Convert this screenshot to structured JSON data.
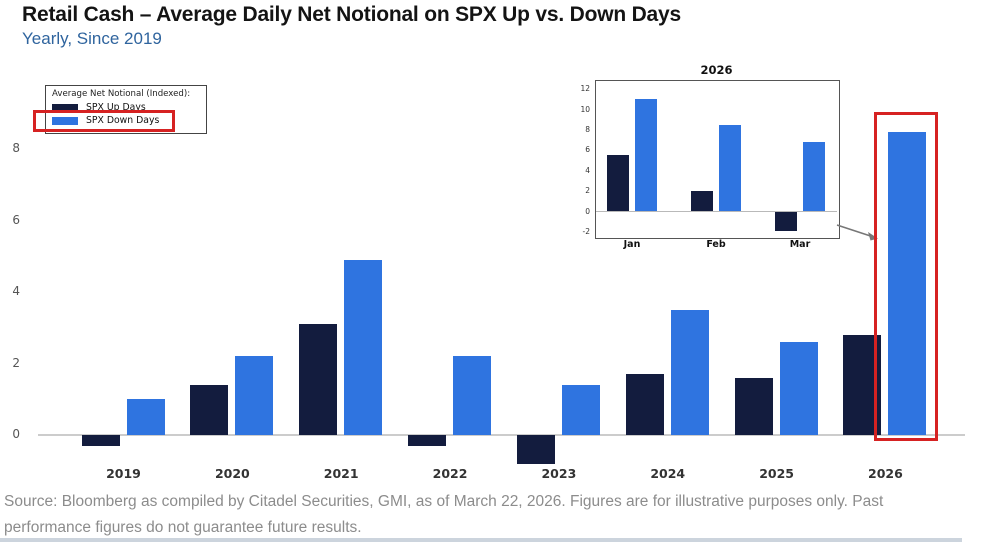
{
  "page": {
    "title": "Retail Cash – Average Daily Net Notional on SPX Up vs. Down Days",
    "subtitle": "Yearly, Since 2019"
  },
  "legend": {
    "title": "Average Net Notional (Indexed):",
    "items": [
      {
        "label": "SPX Up Days",
        "color": "#131c3e"
      },
      {
        "label": "SPX Down Days",
        "color": "#2f74e0"
      }
    ]
  },
  "colors": {
    "up": "#131c3e",
    "down": "#2f74e0",
    "highlight_red": "#d62222",
    "subtitle_blue": "#2f649e",
    "source_gray": "#8c8c8c",
    "zero_line": "#cccccc"
  },
  "chart_data": [
    {
      "type": "bar",
      "title": "Retail Cash – Average Daily Net Notional on SPX Up vs. Down Days",
      "subtitle": "Yearly, Since 2019",
      "categories": [
        "2019",
        "2020",
        "2021",
        "2022",
        "2023",
        "2024",
        "2025",
        "2026"
      ],
      "series": [
        {
          "name": "SPX Up Days",
          "color": "#131c3e",
          "values": [
            -0.3,
            1.4,
            3.1,
            -0.3,
            -0.8,
            1.7,
            1.6,
            2.8
          ]
        },
        {
          "name": "SPX Down Days",
          "color": "#2f74e0",
          "values": [
            1.0,
            2.2,
            4.9,
            2.2,
            1.4,
            3.5,
            2.6,
            8.5
          ]
        }
      ],
      "xlabel": "",
      "ylabel": "",
      "yticks": [
        8,
        6,
        4,
        2,
        0
      ],
      "ylim": [
        -1,
        9.2
      ],
      "grid": "zero baseline only",
      "legend_position": "upper-left",
      "annotations": [
        "red rectangle around 'SPX Down Days' legend entry",
        "red rectangle highlighting the 2026 SPX Down Days bar",
        "gray leader line connecting 2026 inset to highlighted bar"
      ]
    },
    {
      "type": "bar",
      "title": "2026",
      "categories": [
        "Jan",
        "Feb",
        "Mar"
      ],
      "series": [
        {
          "name": "SPX Up Days",
          "color": "#131c3e",
          "values": [
            5.5,
            2.0,
            -1.9
          ]
        },
        {
          "name": "SPX Down Days",
          "color": "#2f74e0",
          "values": [
            11.0,
            8.5,
            6.8
          ]
        }
      ],
      "xlabel": "",
      "ylabel": "",
      "yticks": [
        12,
        10,
        8,
        6,
        4,
        2,
        0,
        -2
      ],
      "ylim": [
        -2.5,
        13
      ],
      "grid": "zero baseline only",
      "legend_position": "none"
    }
  ],
  "footer": {
    "line1": "Source: Bloomberg as compiled by Citadel Securities, GMI, as of March 22, 2026. Figures are for illustrative purposes only. Past",
    "line2": "performance figures do not guarantee future results."
  }
}
